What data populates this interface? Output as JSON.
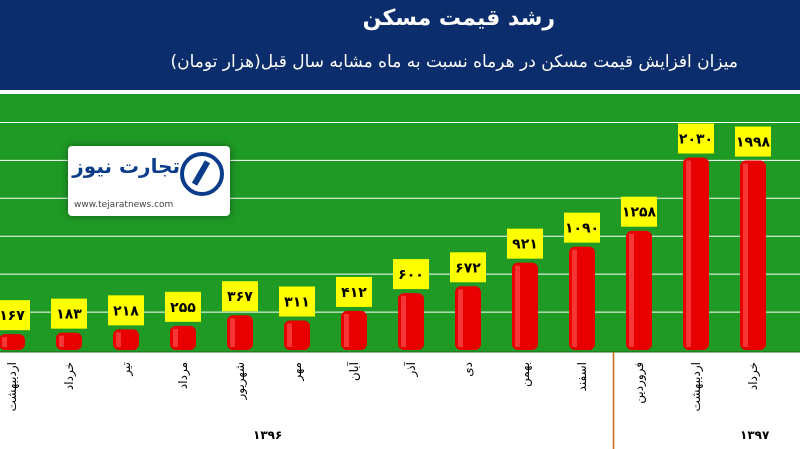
{
  "header": {
    "title": "رشد قیمت مسکن",
    "subtitle": "میزان افزایش قیمت مسکن در هرماه نسبت به ماه مشابه سال قبل(هزار تومان)"
  },
  "logo": {
    "name": "تجارت نیوز",
    "url": "www.tejaratnews.com"
  },
  "years": [
    "۱۳۹۶",
    "۱۳۹۷"
  ],
  "colors": {
    "header": "#0b2d6b",
    "plot_bg": "#1f9a25",
    "bar": "#e80000",
    "label_bg": "#ffff00"
  },
  "chart_data": {
    "type": "bar",
    "title": "رشد قیمت مسکن",
    "subtitle": "میزان افزایش قیمت مسکن در هرماه نسبت به ماه مشابه سال قبل(هزار تومان)",
    "categories": [
      "اردیبهشت",
      "خرداد",
      "تیر",
      "مرداد",
      "شهریور",
      "مهر",
      "آبان",
      "آذر",
      "دی",
      "بهمن",
      "اسفند",
      "فروردین",
      "اردیبهشت",
      "خرداد"
    ],
    "values": [
      167,
      183,
      218,
      255,
      367,
      311,
      412,
      600,
      672,
      921,
      1090,
      1258,
      2030,
      1998
    ],
    "value_labels": [
      "۱۶۷",
      "۱۸۳",
      "۲۱۸",
      "۲۵۵",
      "۳۶۷",
      "۳۱۱",
      "۴۱۲",
      "۶۰۰",
      "۶۷۲",
      "۹۲۱",
      "۱۰۹۰",
      "۱۲۵۸",
      "۲۰۳۰",
      "۱۹۹۸"
    ],
    "groups": [
      {
        "name": "۱۳۹۶",
        "from": 0,
        "to": 10
      },
      {
        "name": "۱۳۹۷",
        "from": 11,
        "to": 13
      }
    ],
    "ylim": [
      0,
      2700
    ],
    "grid": true,
    "xlabel": "",
    "ylabel": ""
  }
}
